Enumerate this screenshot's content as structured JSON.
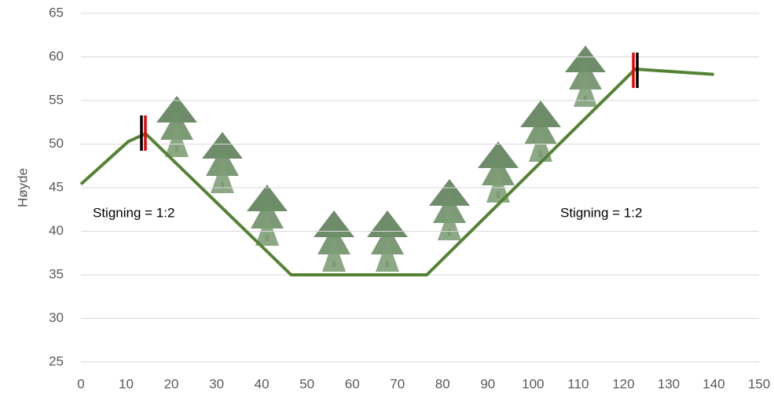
{
  "chart_data": {
    "type": "line",
    "ylabel": "Høyde",
    "x": [
      0,
      10.5,
      14.3,
      46.5,
      76.5,
      122.6,
      140
    ],
    "series": [
      {
        "color": "#548235",
        "values": [
          45.4,
          50.3,
          51.2,
          35,
          35,
          58.6,
          58
        ]
      }
    ],
    "xlim": [
      0,
      150
    ],
    "xticks": [
      0,
      10,
      20,
      30,
      40,
      50,
      60,
      70,
      80,
      90,
      100,
      110,
      120,
      130,
      140,
      150
    ],
    "ylim": [
      25,
      65
    ],
    "yticks": [
      25,
      30,
      35,
      40,
      45,
      50,
      55,
      60,
      65
    ],
    "grid": true,
    "annotations": [
      "Stigning = 1:2",
      "Stigning = 1:2"
    ]
  }
}
